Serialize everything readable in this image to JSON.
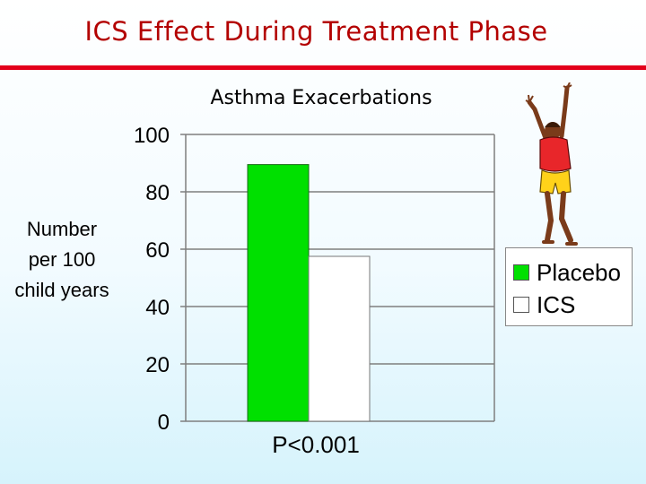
{
  "slide": {
    "title": "ICS Effect During Treatment Phase"
  },
  "colors": {
    "title": "#b30000",
    "rule": "#e3001b",
    "placebo": "#00e000",
    "ics": "#ffffff",
    "grid": "#7f7f7f"
  },
  "chart_data": {
    "type": "bar",
    "title": "Asthma Exacerbations",
    "ylabel": "Number per 100 child years",
    "ylabel_lines": [
      "Number",
      "per 100",
      "child years"
    ],
    "xlabel": "",
    "ylim": [
      0,
      100
    ],
    "yticks": [
      0,
      20,
      40,
      60,
      80,
      100
    ],
    "categories": [
      ""
    ],
    "series": [
      {
        "name": "Placebo",
        "values": [
          89.5
        ],
        "color": "#00e000"
      },
      {
        "name": "ICS",
        "values": [
          57.5
        ],
        "color": "#ffffff"
      }
    ],
    "annotation": "P<0.001",
    "grid": true,
    "legend_position": "right"
  },
  "icons": {
    "figure": "child-reaching-up-icon"
  }
}
